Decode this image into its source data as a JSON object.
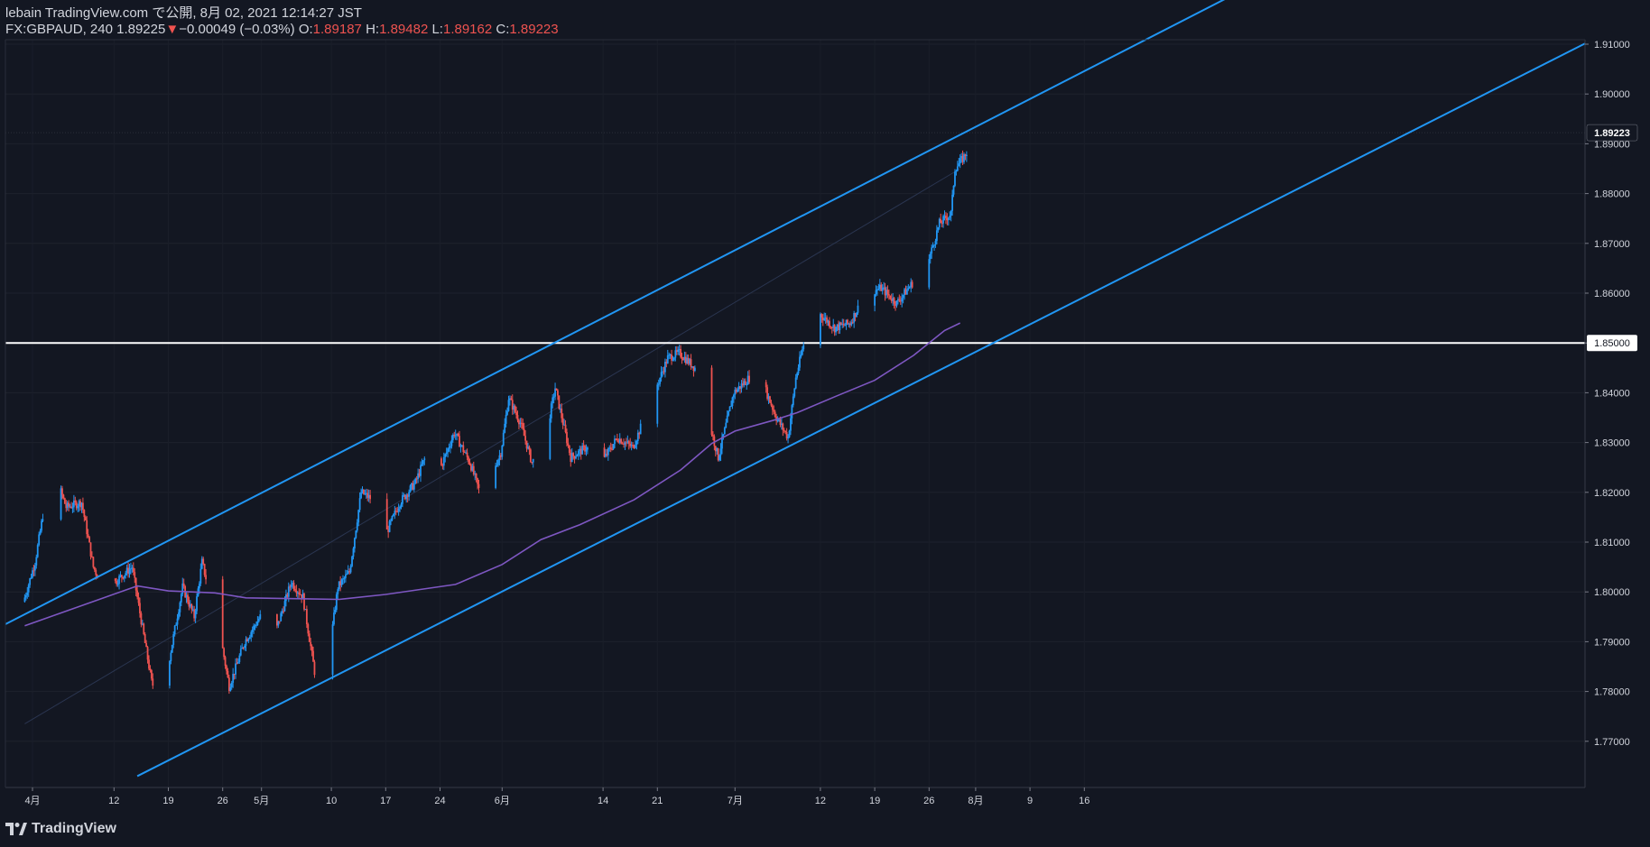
{
  "header": {
    "publish_line": "lebain TradingView.com で公開, 8月 02, 2021 12:14:27 JST",
    "symbol": "FX:GBPAUD, 240",
    "last": "1.89225",
    "down_arrow": "▼",
    "change": "−0.00049 (−0.03%)",
    "o_label": "O:",
    "o_value": "1.89187",
    "h_label": "H:",
    "h_value": "1.89482",
    "l_label": "L:",
    "l_value": "1.89162",
    "c_label": "C:",
    "c_value": "1.89223"
  },
  "footer": {
    "brand": "TradingView",
    "logo_icon": "tradingview-logo-icon"
  },
  "colors": {
    "background": "#131722",
    "up": "#2962ff",
    "up_candle": "#2196f3",
    "down": "#ef5350",
    "channel": "#2196f3",
    "ma": "#7e57c2",
    "level": "#ffffff",
    "axis_text": "#d1d4dc"
  },
  "chart_data": {
    "type": "candlestick",
    "title": "FX:GBPAUD, 240",
    "ylim": [
      1.762,
      1.912
    ],
    "y_ticks": [
      "1.91000",
      "1.90000",
      "1.89000",
      "1.88000",
      "1.87000",
      "1.86000",
      "1.85000",
      "1.84000",
      "1.83000",
      "1.82000",
      "1.81000",
      "1.80000",
      "1.79000",
      "1.78000",
      "1.77000"
    ],
    "y_tick_values": [
      1.91,
      1.9,
      1.89,
      1.88,
      1.87,
      1.86,
      1.85,
      1.84,
      1.83,
      1.82,
      1.81,
      1.8,
      1.79,
      1.78,
      1.77
    ],
    "x_range_days": [
      0,
      128
    ],
    "x_ticks": [
      {
        "label": "4月",
        "day": 0.5
      },
      {
        "label": "12",
        "day": 11
      },
      {
        "label": "19",
        "day": 18
      },
      {
        "label": "26",
        "day": 25
      },
      {
        "label": "5月",
        "day": 30
      },
      {
        "label": "10",
        "day": 39
      },
      {
        "label": "17",
        "day": 46
      },
      {
        "label": "24",
        "day": 53
      },
      {
        "label": "6月",
        "day": 61
      },
      {
        "label": "14",
        "day": 74
      },
      {
        "label": "21",
        "day": 81
      },
      {
        "label": "7月",
        "day": 91
      },
      {
        "label": "12",
        "day": 102
      },
      {
        "label": "19",
        "day": 109
      },
      {
        "label": "26",
        "day": 116
      },
      {
        "label": "8月",
        "day": 122
      },
      {
        "label": "9",
        "day": 129
      },
      {
        "label": "16",
        "day": 136
      }
    ],
    "last_price_label": "1.89223",
    "last_price": 1.89223,
    "horizontal_level": {
      "value": 1.85,
      "label": "1.85000"
    },
    "channel": {
      "upper": [
        {
          "day": -0.5,
          "price": 1.7955
        },
        {
          "day": 122.5,
          "price": 1.8938
        }
      ],
      "lower": [
        {
          "day": 14,
          "price": 1.763
        },
        {
          "day": 122.5,
          "price": 1.8486
        }
      ],
      "mid": [
        {
          "day": -0.5,
          "price": 1.7735
        },
        {
          "day": 120,
          "price": 1.885
        }
      ]
    },
    "moving_average": {
      "name": "MA",
      "points": [
        {
          "day": -0.5,
          "price": 1.7932
        },
        {
          "day": 10,
          "price": 1.799
        },
        {
          "day": 14,
          "price": 1.8012
        },
        {
          "day": 18,
          "price": 1.8002
        },
        {
          "day": 24,
          "price": 1.7998
        },
        {
          "day": 28,
          "price": 1.7988
        },
        {
          "day": 36,
          "price": 1.7986
        },
        {
          "day": 40,
          "price": 1.7985
        },
        {
          "day": 46,
          "price": 1.7995
        },
        {
          "day": 55,
          "price": 1.8015
        },
        {
          "day": 61,
          "price": 1.8055
        },
        {
          "day": 66,
          "price": 1.8105
        },
        {
          "day": 71,
          "price": 1.8135
        },
        {
          "day": 78,
          "price": 1.8185
        },
        {
          "day": 84,
          "price": 1.8245
        },
        {
          "day": 88,
          "price": 1.8298
        },
        {
          "day": 91,
          "price": 1.8323
        },
        {
          "day": 96,
          "price": 1.8345
        },
        {
          "day": 99,
          "price": 1.836
        },
        {
          "day": 104,
          "price": 1.8393
        },
        {
          "day": 109,
          "price": 1.8425
        },
        {
          "day": 114,
          "price": 1.8475
        },
        {
          "day": 118,
          "price": 1.8525
        },
        {
          "day": 120,
          "price": 1.854
        }
      ]
    },
    "price_path": [
      {
        "day": -0.5,
        "price": 1.798
      },
      {
        "day": 1,
        "price": 1.806
      },
      {
        "day": 2.5,
        "price": 1.82
      },
      {
        "day": 3.5,
        "price": 1.824
      },
      {
        "day": 5,
        "price": 1.817
      },
      {
        "day": 7,
        "price": 1.818
      },
      {
        "day": 8.5,
        "price": 1.805
      },
      {
        "day": 10,
        "price": 1.8
      },
      {
        "day": 12,
        "price": 1.803
      },
      {
        "day": 13.5,
        "price": 1.805
      },
      {
        "day": 16,
        "price": 1.782
      },
      {
        "day": 17,
        "price": 1.778
      },
      {
        "day": 18,
        "price": 1.784
      },
      {
        "day": 20,
        "price": 1.801
      },
      {
        "day": 21.5,
        "price": 1.795
      },
      {
        "day": 22.5,
        "price": 1.806
      },
      {
        "day": 25,
        "price": 1.79
      },
      {
        "day": 26,
        "price": 1.781
      },
      {
        "day": 28,
        "price": 1.79
      },
      {
        "day": 30,
        "price": 1.795
      },
      {
        "day": 32,
        "price": 1.792
      },
      {
        "day": 34,
        "price": 1.802
      },
      {
        "day": 35.5,
        "price": 1.799
      },
      {
        "day": 37,
        "price": 1.784
      },
      {
        "day": 38.5,
        "price": 1.783
      },
      {
        "day": 40,
        "price": 1.801
      },
      {
        "day": 41.5,
        "price": 1.804
      },
      {
        "day": 43,
        "price": 1.82
      },
      {
        "day": 45,
        "price": 1.818
      },
      {
        "day": 46,
        "price": 1.811
      },
      {
        "day": 48,
        "price": 1.818
      },
      {
        "day": 50,
        "price": 1.822
      },
      {
        "day": 51.5,
        "price": 1.828
      },
      {
        "day": 53,
        "price": 1.824
      },
      {
        "day": 55,
        "price": 1.832
      },
      {
        "day": 57,
        "price": 1.826
      },
      {
        "day": 58.5,
        "price": 1.819
      },
      {
        "day": 61,
        "price": 1.828
      },
      {
        "day": 62,
        "price": 1.839
      },
      {
        "day": 63.5,
        "price": 1.834
      },
      {
        "day": 65,
        "price": 1.826
      },
      {
        "day": 66.5,
        "price": 1.829
      },
      {
        "day": 68,
        "price": 1.841
      },
      {
        "day": 70,
        "price": 1.827
      },
      {
        "day": 72,
        "price": 1.829
      },
      {
        "day": 74,
        "price": 1.826
      },
      {
        "day": 76,
        "price": 1.831
      },
      {
        "day": 78,
        "price": 1.829
      },
      {
        "day": 80,
        "price": 1.837
      },
      {
        "day": 81.5,
        "price": 1.843
      },
      {
        "day": 82.5,
        "price": 1.847
      },
      {
        "day": 84,
        "price": 1.848
      },
      {
        "day": 86,
        "price": 1.845
      },
      {
        "day": 88,
        "price": 1.833
      },
      {
        "day": 89,
        "price": 1.827
      },
      {
        "day": 91,
        "price": 1.84
      },
      {
        "day": 93,
        "price": 1.843
      },
      {
        "day": 95,
        "price": 1.841
      },
      {
        "day": 96.5,
        "price": 1.835
      },
      {
        "day": 98,
        "price": 1.831
      },
      {
        "day": 99,
        "price": 1.843
      },
      {
        "day": 100.5,
        "price": 1.853
      },
      {
        "day": 102,
        "price": 1.856
      },
      {
        "day": 104,
        "price": 1.853
      },
      {
        "day": 106,
        "price": 1.854
      },
      {
        "day": 108,
        "price": 1.86
      },
      {
        "day": 110,
        "price": 1.861
      },
      {
        "day": 112,
        "price": 1.858
      },
      {
        "day": 114,
        "price": 1.862
      },
      {
        "day": 116,
        "price": 1.866
      },
      {
        "day": 117.5,
        "price": 1.874
      },
      {
        "day": 119,
        "price": 1.876
      },
      {
        "day": 119.5,
        "price": 1.885
      },
      {
        "day": 120.5,
        "price": 1.887
      },
      {
        "day": 122.5,
        "price": 1.8922
      }
    ]
  }
}
